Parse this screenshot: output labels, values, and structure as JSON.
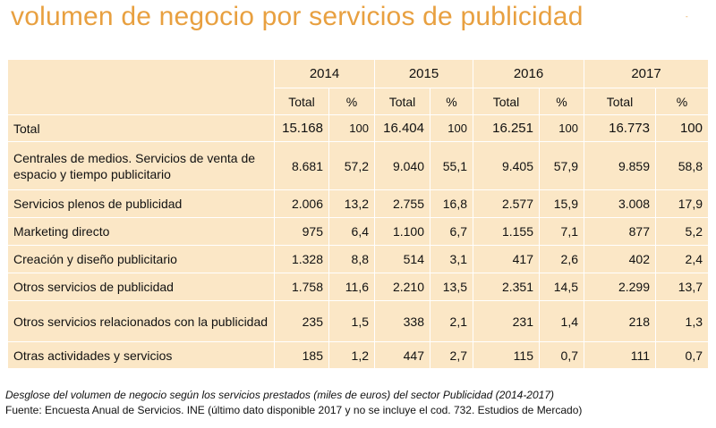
{
  "title": "volumen de negocio por servicios de publicidad",
  "corner_mark": "-",
  "table": {
    "years": [
      "2014",
      "2015",
      "2016",
      "2017"
    ],
    "sub_headers": [
      "Total",
      "%"
    ],
    "rows": [
      {
        "label": "Total",
        "cells": [
          "15.168",
          "100",
          "16.404",
          "100",
          "16.251",
          "100",
          "16.773",
          "100"
        ]
      },
      {
        "label": "Centrales de medios. Servicios de venta de espacio y tiempo publicitario",
        "cells": [
          "8.681",
          "57,2",
          "9.040",
          "55,1",
          "9.405",
          "57,9",
          "9.859",
          "58,8"
        ]
      },
      {
        "label": "Servicios plenos de publicidad",
        "cells": [
          "2.006",
          "13,2",
          "2.755",
          "16,8",
          "2.577",
          "15,9",
          "3.008",
          "17,9"
        ]
      },
      {
        "label": "Marketing directo",
        "cells": [
          "975",
          "6,4",
          "1.100",
          "6,7",
          "1.155",
          "7,1",
          "877",
          "5,2"
        ]
      },
      {
        "label": "Creación y diseño publicitario",
        "cells": [
          "1.328",
          "8,8",
          "514",
          "3,1",
          "417",
          "2,6",
          "402",
          "2,4"
        ]
      },
      {
        "label": "Otros servicios de publicidad",
        "cells": [
          "1.758",
          "11,6",
          "2.210",
          "13,5",
          "2.351",
          "14,5",
          "2.299",
          "13,7"
        ]
      },
      {
        "label": "Otros servicios relacionados con la publicidad",
        "cells": [
          "235",
          "1,5",
          "338",
          "2,1",
          "231",
          "1,4",
          "218",
          "1,3"
        ]
      },
      {
        "label": "Otras actividades y servicios",
        "cells": [
          "185",
          "1,2",
          "447",
          "2,7",
          "115",
          "0,7",
          "111",
          "0,7"
        ]
      }
    ]
  },
  "caption": "Desglose del volumen de negocio según los servicios prestados (miles de euros) del sector Publicidad (2014-2017)",
  "source": "Fuente: Encuesta Anual de Servicios. INE (último dato disponible 2017 y no se incluye el cod. 732. Estudios de Mercado)"
}
